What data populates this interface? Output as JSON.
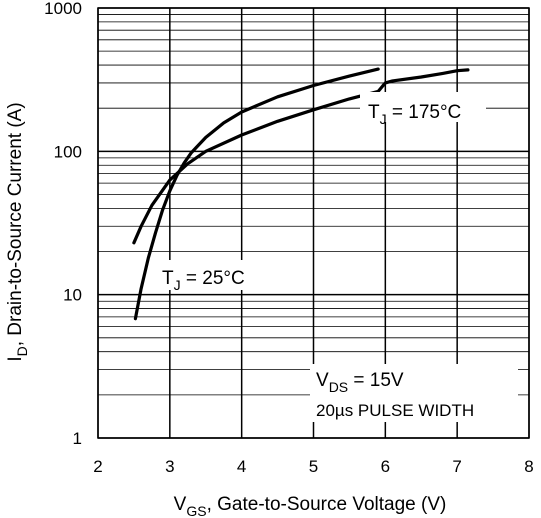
{
  "chart_data": {
    "type": "line",
    "ylog": true,
    "xlim": [
      2,
      8
    ],
    "ylim": [
      1,
      1000
    ],
    "xticks": [
      "2",
      "3",
      "4",
      "5",
      "6",
      "7",
      "8"
    ],
    "yticks": [
      "1",
      "10",
      "100",
      "1000"
    ],
    "grid": true,
    "xlabel": {
      "main": "V",
      "sub": "GS",
      "rest": ", Gate-to-Source Voltage (V)"
    },
    "ylabel": {
      "main": "I",
      "sub": "D",
      "rest": ", Drain-to-Source Current  (A)"
    },
    "series": [
      {
        "name": "TJ = 25°C",
        "label": {
          "main": "T",
          "sub": "J",
          "rest": " = 25°C"
        },
        "x": [
          2.52,
          2.6,
          2.7,
          2.8,
          2.9,
          3.0,
          3.1,
          3.2,
          3.3,
          3.5,
          3.75,
          4.0,
          4.5,
          5.0,
          5.5,
          5.9
        ],
        "y": [
          6.8,
          11,
          18,
          27,
          39,
          53,
          68,
          83,
          98,
          125,
          158,
          188,
          240,
          288,
          335,
          375
        ]
      },
      {
        "name": "TJ = 175°C",
        "label": {
          "main": "T",
          "sub": "J",
          "rest": " = 175°C"
        },
        "x": [
          2.5,
          2.6,
          2.75,
          3.0,
          3.25,
          3.5,
          4.0,
          4.5,
          5.0,
          5.5,
          5.9,
          6.0,
          6.1,
          6.5,
          6.8,
          7.0,
          7.15
        ],
        "y": [
          23,
          30,
          42,
          63,
          82,
          100,
          130,
          162,
          195,
          232,
          262,
          300,
          310,
          330,
          350,
          365,
          370
        ]
      }
    ],
    "annotations": [
      {
        "main": "V",
        "sub": "DS",
        "rest": " = 15V"
      },
      {
        "text": "20µs PULSE WIDTH"
      }
    ]
  }
}
